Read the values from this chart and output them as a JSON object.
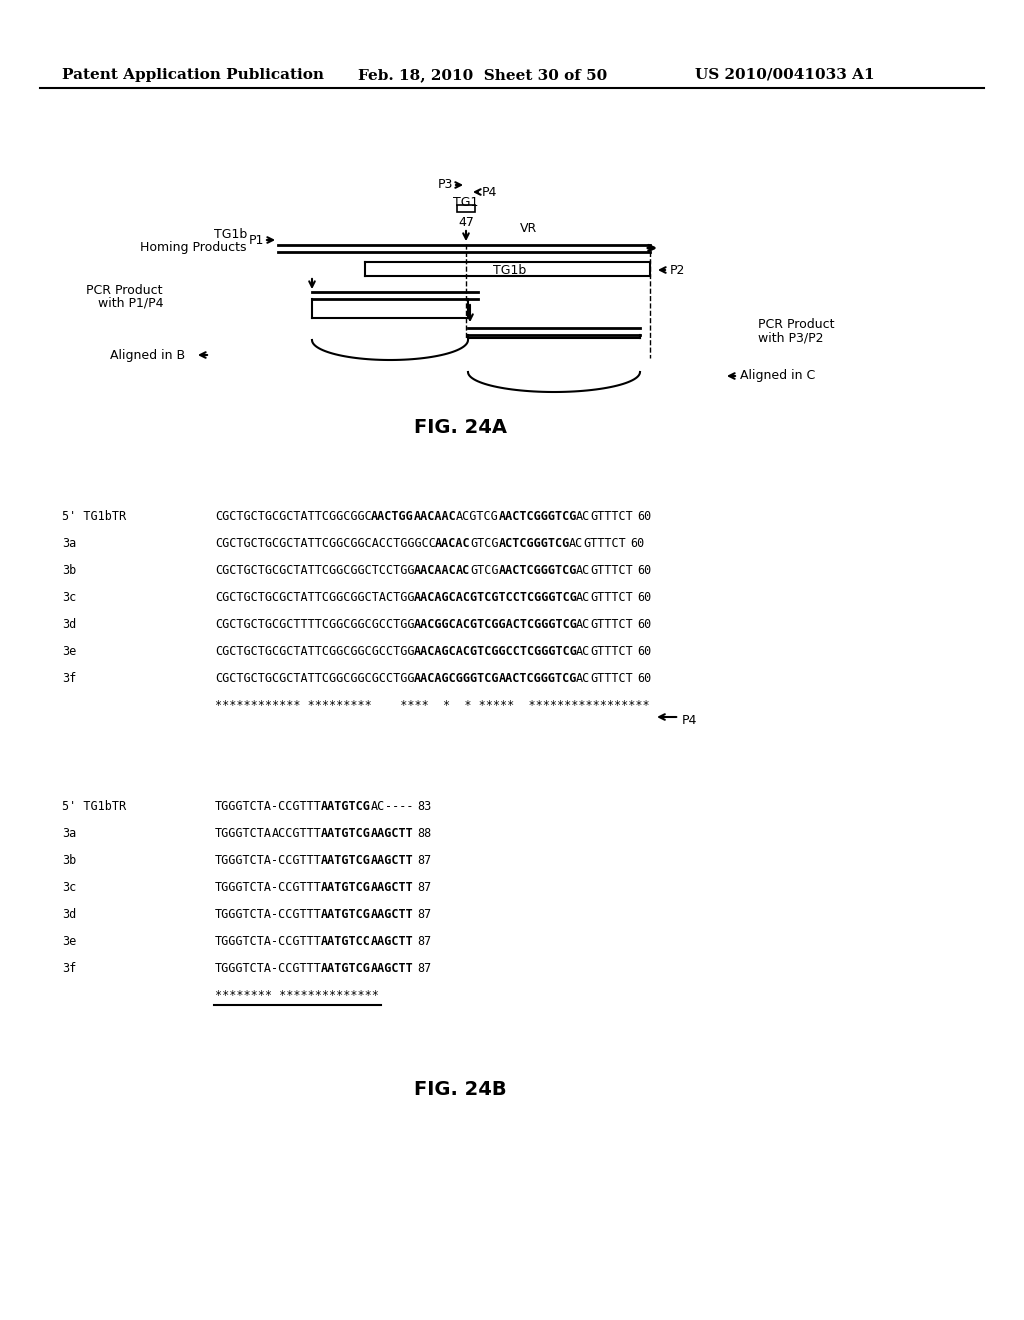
{
  "header_left": "Patent Application Publication",
  "header_mid": "Feb. 18, 2010  Sheet 30 of 50",
  "header_right": "US 2010/0041033 A1",
  "fig24a_label": "FIG. 24A",
  "fig24b_label": "FIG. 24B",
  "bg_color": "#ffffff",
  "seq_b1_rows": [
    {
      "label": "5' TG1bTR",
      "p1": "CGCTGCTGCGCTATTCGGCGGC",
      "b1": "AACTGG",
      "b2": "AACAAC",
      "p2": "ACGTCG",
      "b3": "AACTCGGGTCG",
      "p3": "AC",
      "p4": "GTTTCT",
      "num": "60"
    },
    {
      "label": "3a",
      "p1": "CGCTGCTGCGCTATTCGGCGGCACCTGGGCC",
      "b1": "AACAC",
      "p2": "GTCG",
      "b3": "ACTCGGGTCG",
      "p3": "AC",
      "p4": "GTTTCT",
      "num": "60"
    },
    {
      "label": "3b",
      "p1": "CGCTGCTGCGCTATTCGGCGGCTCCTGG",
      "b1": "AACAAC",
      "b2": "AC",
      "p2": "GTCG",
      "b3": "AACTCGGGTCG",
      "p3": "AC",
      "p4": "GTTTCT",
      "num": "60"
    },
    {
      "label": "3c",
      "p1": "CGCTGCTGCGCTATTCGGCGGCTACTGG",
      "b1": "AACAGCACGTCGTCCTCGGGTCG",
      "p3": "AC",
      "p4": "GTTTCT",
      "num": "60"
    },
    {
      "label": "3d",
      "p1": "CGCTGCTGCGCTTTTCGGCGGCGCCTGG",
      "b1": "AACGGCACGTCGGACTCGGGTCG",
      "p3": "AC",
      "p4": "GTTTCT",
      "num": "60"
    },
    {
      "label": "3e",
      "p1": "CGCTGCTGCGCTATTCGGCGGCGCCTGG",
      "b1": "AACAGCACGTCGGCCTCGGGTCG",
      "p3": "AC",
      "p4": "GTTTCT",
      "num": "60"
    },
    {
      "label": "3f",
      "p1": "CGCTGCTGCGCTATTCGGCGGCGCCTGG",
      "b1": "AACAGCGGGTCG",
      "b3": "AACTCGGGTCG",
      "p3": "AC",
      "p4": "GTTTCT",
      "num": "60"
    }
  ],
  "consensus1": "************ *********    ****  *  * *****  *****************",
  "seq_b2_rows": [
    {
      "label": "5' TG1bTR",
      "p1": "TGGGTCTA-CCGTTT",
      "b1": "AATGTCG",
      "p2": "AC----",
      "num": "83"
    },
    {
      "label": "3a",
      "p1": "TGGGTCTA",
      "b1": "ACCGTTT",
      "b2": "AATGTCG",
      "b3": "AAGCTT",
      "num": "88"
    },
    {
      "label": "3b",
      "p1": "TGGGTCTA-CCGTTT",
      "b1": "AATGTCG",
      "b2": "AAGCTT",
      "num": "87"
    },
    {
      "label": "3c",
      "p1": "TGGGTCTA-CCGTTT",
      "b1": "AATGTCG",
      "b2": "AAGCTT",
      "num": "87"
    },
    {
      "label": "3d",
      "p1": "TGGGTCTA-CCGTTT",
      "b1": "AATGTCG",
      "b2": "AAGCTT",
      "num": "87"
    },
    {
      "label": "3e",
      "p1": "TGGGTCTA-CCGTTT",
      "b1": "AATGTCC",
      "b2": "AAGCTT",
      "num": "87"
    },
    {
      "label": "3f",
      "p1": "TGGGTCTA-CCGTTT",
      "b1": "AATGTCG",
      "b2": "AAGCTT",
      "num": "87"
    }
  ],
  "consensus2": "******** **************"
}
